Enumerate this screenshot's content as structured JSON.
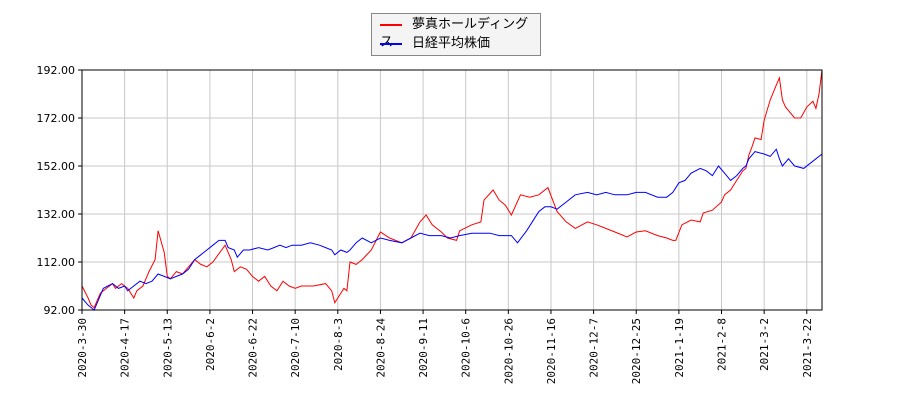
{
  "chart_data": {
    "type": "line",
    "title": "",
    "xlabel": "",
    "ylabel": "",
    "x_unit": "trading days since 2020-3-30",
    "xlim": [
      0,
      243
    ],
    "ylim": [
      92,
      192
    ],
    "grid": true,
    "legend_placement": "top-center",
    "y_ticks": [
      92,
      112,
      132,
      152,
      172,
      192
    ],
    "y_tick_labels": [
      "92.00",
      "112.00",
      "132.00",
      "152.00",
      "172.00",
      "192.00"
    ],
    "x_ticks": [
      0,
      14,
      28,
      42,
      56,
      70,
      84,
      98,
      112,
      126,
      140,
      154,
      168,
      182,
      196,
      210,
      224,
      238
    ],
    "x_tick_labels": [
      "2020-3-30",
      "2020-4-17",
      "2020-5-13",
      "2020-6-2",
      "2020-6-22",
      "2020-7-10",
      "2020-8-3",
      "2020-8-24",
      "2020-9-11",
      "2020-10-6",
      "2020-10-26",
      "2020-11-16",
      "2020-12-7",
      "2020-12-25",
      "2021-1-19",
      "2021-2-8",
      "2021-3-2",
      "2021-3-22"
    ],
    "series": [
      {
        "name": "夢真ホールディングス",
        "color": "#ff0000",
        "points": [
          [
            0,
            102
          ],
          [
            2,
            97
          ],
          [
            3,
            94
          ],
          [
            4,
            93
          ],
          [
            6,
            99
          ],
          [
            8,
            101
          ],
          [
            10,
            103
          ],
          [
            11,
            101
          ],
          [
            13,
            103
          ],
          [
            15,
            101
          ],
          [
            17,
            97
          ],
          [
            18,
            100
          ],
          [
            20,
            102
          ],
          [
            22,
            108
          ],
          [
            24,
            113
          ],
          [
            25,
            125
          ],
          [
            27,
            116
          ],
          [
            28,
            106
          ],
          [
            29,
            105
          ],
          [
            31,
            108
          ],
          [
            33,
            107
          ],
          [
            35,
            110
          ],
          [
            37,
            113
          ],
          [
            39,
            111
          ],
          [
            41,
            110
          ],
          [
            43,
            112
          ],
          [
            47,
            119
          ],
          [
            49,
            113
          ],
          [
            50,
            108
          ],
          [
            52,
            110
          ],
          [
            54,
            109
          ],
          [
            56,
            106
          ],
          [
            58,
            104
          ],
          [
            60,
            106
          ],
          [
            62,
            102
          ],
          [
            64,
            100
          ],
          [
            66,
            104
          ],
          [
            68,
            102
          ],
          [
            70,
            101
          ],
          [
            72,
            102
          ],
          [
            76,
            102
          ],
          [
            80,
            103
          ],
          [
            82,
            100
          ],
          [
            83,
            95
          ],
          [
            84,
            97
          ],
          [
            86,
            101
          ],
          [
            87,
            100
          ],
          [
            88,
            112
          ],
          [
            90,
            111
          ],
          [
            92,
            113
          ],
          [
            95,
            117
          ],
          [
            98,
            124.5
          ],
          [
            101,
            122
          ],
          [
            105,
            120
          ],
          [
            108,
            122
          ],
          [
            111,
            128.7
          ],
          [
            113,
            131.6
          ],
          [
            115,
            127.5
          ],
          [
            118,
            124.5
          ],
          [
            120,
            122
          ],
          [
            123,
            121
          ],
          [
            124,
            125
          ],
          [
            128,
            127.5
          ],
          [
            131,
            128.7
          ],
          [
            132,
            137.8
          ],
          [
            135,
            142
          ],
          [
            137,
            137.8
          ],
          [
            139,
            135.7
          ],
          [
            141,
            131.6
          ],
          [
            144,
            140
          ],
          [
            147,
            139
          ],
          [
            150,
            140
          ],
          [
            153,
            143
          ],
          [
            156,
            133
          ],
          [
            159,
            128.7
          ],
          [
            162,
            126
          ],
          [
            166,
            128.7
          ],
          [
            169,
            127.5
          ],
          [
            172,
            126
          ],
          [
            175,
            124.5
          ],
          [
            179,
            122.4
          ],
          [
            182,
            124.5
          ],
          [
            185,
            125
          ],
          [
            189,
            123
          ],
          [
            192,
            122
          ],
          [
            194,
            121
          ],
          [
            195,
            121
          ],
          [
            197,
            127.5
          ],
          [
            200,
            129.5
          ],
          [
            203,
            128.7
          ],
          [
            204,
            132.4
          ],
          [
            207,
            133.6
          ],
          [
            210,
            137
          ],
          [
            211,
            140
          ],
          [
            213,
            142
          ],
          [
            215,
            146
          ],
          [
            217,
            150
          ],
          [
            218,
            151
          ],
          [
            219,
            156.6
          ],
          [
            220,
            160
          ],
          [
            221,
            163.7
          ],
          [
            223,
            163
          ],
          [
            224,
            171
          ],
          [
            226,
            179.5
          ],
          [
            228,
            185.7
          ],
          [
            229,
            188.7
          ],
          [
            230,
            179.5
          ],
          [
            231,
            176.6
          ],
          [
            234,
            172
          ],
          [
            236,
            172
          ],
          [
            238,
            176.6
          ],
          [
            240,
            179
          ],
          [
            241,
            176
          ],
          [
            242,
            182
          ],
          [
            243,
            192
          ]
        ]
      },
      {
        "name": "日経平均株価",
        "color": "#0000ff",
        "points": [
          [
            0,
            97
          ],
          [
            2,
            94
          ],
          [
            4,
            92
          ],
          [
            6,
            98
          ],
          [
            7,
            101
          ],
          [
            10,
            103
          ],
          [
            12,
            101
          ],
          [
            14,
            102
          ],
          [
            15,
            100
          ],
          [
            17,
            102
          ],
          [
            19,
            104
          ],
          [
            21,
            103
          ],
          [
            23,
            104
          ],
          [
            25,
            107
          ],
          [
            27,
            106
          ],
          [
            29,
            105
          ],
          [
            31,
            106
          ],
          [
            33,
            107
          ],
          [
            35,
            109
          ],
          [
            37,
            113
          ],
          [
            39,
            115
          ],
          [
            41,
            117
          ],
          [
            43,
            119
          ],
          [
            45,
            121
          ],
          [
            47,
            121
          ],
          [
            48,
            118
          ],
          [
            50,
            117
          ],
          [
            51,
            114
          ],
          [
            53,
            117
          ],
          [
            55,
            117
          ],
          [
            58,
            118
          ],
          [
            61,
            117
          ],
          [
            63,
            118
          ],
          [
            65,
            119
          ],
          [
            67,
            118
          ],
          [
            69,
            119
          ],
          [
            71,
            119
          ],
          [
            72,
            119
          ],
          [
            75,
            120
          ],
          [
            78,
            119
          ],
          [
            80,
            118
          ],
          [
            82,
            117
          ],
          [
            83,
            115
          ],
          [
            85,
            117
          ],
          [
            87,
            116
          ],
          [
            88,
            117
          ],
          [
            90,
            120
          ],
          [
            92,
            122
          ],
          [
            95,
            120
          ],
          [
            98,
            122
          ],
          [
            101,
            121
          ],
          [
            105,
            120
          ],
          [
            108,
            122
          ],
          [
            111,
            124
          ],
          [
            114,
            123
          ],
          [
            118,
            123
          ],
          [
            121,
            122
          ],
          [
            124,
            123
          ],
          [
            128,
            124
          ],
          [
            131,
            124
          ],
          [
            134,
            124
          ],
          [
            137,
            123
          ],
          [
            141,
            123
          ],
          [
            143,
            120
          ],
          [
            146,
            125
          ],
          [
            148,
            129
          ],
          [
            150,
            133
          ],
          [
            152,
            135
          ],
          [
            154,
            135
          ],
          [
            156,
            134
          ],
          [
            159,
            137
          ],
          [
            162,
            140
          ],
          [
            166,
            141
          ],
          [
            169,
            140
          ],
          [
            172,
            141
          ],
          [
            175,
            140
          ],
          [
            179,
            140
          ],
          [
            182,
            141
          ],
          [
            185,
            141
          ],
          [
            189,
            139
          ],
          [
            192,
            139
          ],
          [
            194,
            141
          ],
          [
            196,
            145
          ],
          [
            198,
            146
          ],
          [
            200,
            149
          ],
          [
            203,
            151
          ],
          [
            205,
            150
          ],
          [
            207,
            148
          ],
          [
            209,
            152
          ],
          [
            211,
            149
          ],
          [
            213,
            146
          ],
          [
            215,
            148
          ],
          [
            217,
            151
          ],
          [
            218,
            152
          ],
          [
            219,
            155
          ],
          [
            221,
            158
          ],
          [
            224,
            157
          ],
          [
            226,
            156
          ],
          [
            228,
            159
          ],
          [
            229,
            155
          ],
          [
            230,
            152
          ],
          [
            232,
            155
          ],
          [
            234,
            152
          ],
          [
            237,
            151
          ],
          [
            240,
            154
          ],
          [
            243,
            157
          ]
        ]
      }
    ]
  }
}
